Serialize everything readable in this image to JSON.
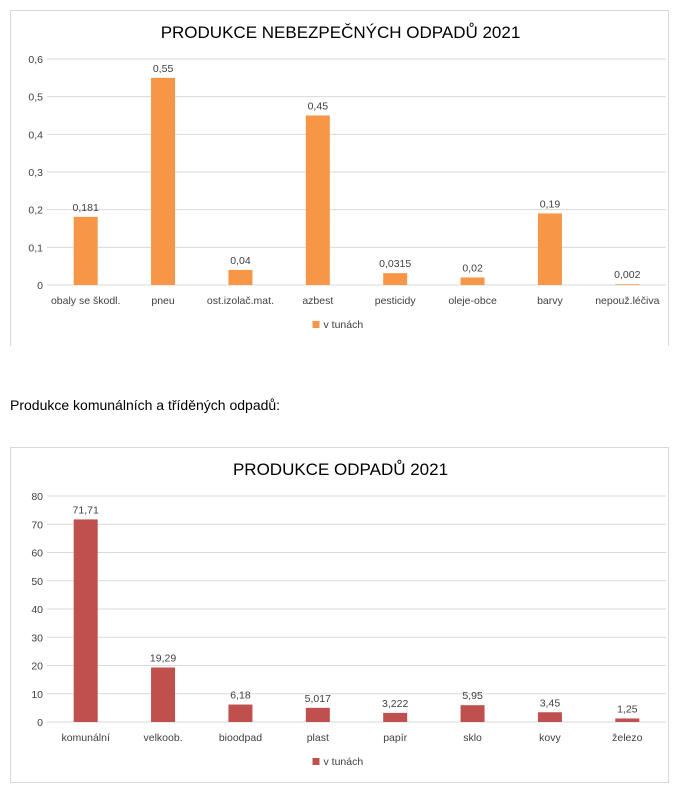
{
  "caption": "Produkce komunálních a tříděných odpadů:",
  "chart_data": [
    {
      "type": "bar",
      "title": "PRODUKCE NEBEZPEČNÝCH ODPADŮ 2021",
      "categories": [
        "obaly se škodl.",
        "pneu",
        "ost.izolač.mat.",
        "azbest",
        "pesticidy",
        "oleje-obce",
        "barvy",
        "nepouž.léčiva"
      ],
      "series": [
        {
          "name": "v tunách",
          "values": [
            0.181,
            0.55,
            0.04,
            0.45,
            0.0315,
            0.02,
            0.19,
            0.002
          ],
          "labels": [
            "0,181",
            "0,55",
            "0,04",
            "0,45",
            "0,0315",
            "0,02",
            "0,19",
            "0,002"
          ],
          "color": "#f79646"
        }
      ],
      "ylim": [
        0,
        0.6
      ],
      "yticks": [
        0,
        0.1,
        0.2,
        0.3,
        0.4,
        0.5,
        0.6
      ],
      "ytick_labels": [
        "0",
        "0,1",
        "0,2",
        "0,3",
        "0,4",
        "0,5",
        "0,6"
      ],
      "grid": true,
      "legend": "bottom"
    },
    {
      "type": "bar",
      "title": "PRODUKCE ODPADŮ 2021",
      "categories": [
        "komunální",
        "velkoob.",
        "bioodpad",
        "plast",
        "papír",
        "sklo",
        "kovy",
        "železo"
      ],
      "series": [
        {
          "name": "v tunách",
          "values": [
            71.71,
            19.29,
            6.18,
            5.017,
            3.222,
            5.95,
            3.45,
            1.25
          ],
          "labels": [
            "71,71",
            "19,29",
            "6,18",
            "5,017",
            "3,222",
            "5,95",
            "3,45",
            "1,25"
          ],
          "color": "#c0504d"
        }
      ],
      "ylim": [
        0,
        80
      ],
      "yticks": [
        0,
        10,
        20,
        30,
        40,
        50,
        60,
        70,
        80
      ],
      "ytick_labels": [
        "0",
        "10",
        "20",
        "30",
        "40",
        "50",
        "60",
        "70",
        "80"
      ],
      "grid": true,
      "legend": "bottom"
    }
  ]
}
